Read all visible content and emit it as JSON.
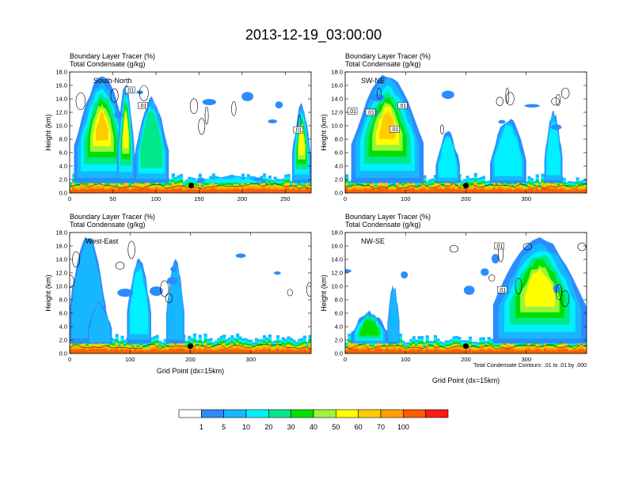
{
  "chart_data": {
    "type": "heatmap",
    "title": "2013-12-19_03:00:00",
    "colorbar": {
      "colors": [
        "#ffffff",
        "#2b8cff",
        "#17b7ff",
        "#00f0ff",
        "#00e88a",
        "#00e000",
        "#9cf53a",
        "#ffff00",
        "#ffcc00",
        "#ffa000",
        "#ff5a00",
        "#ff1a1a"
      ],
      "labels": [
        "1",
        "5",
        "10",
        "20",
        "30",
        "40",
        "50",
        "60",
        "70",
        "100"
      ]
    },
    "footnote": "Total Condensate Contours: .01 to .01 by .000",
    "panels": [
      {
        "id": "south-north",
        "label": "South-North",
        "line1": "Boundary Layer Tracer   (%)",
        "line2": "Total Condensate   (g/kg)",
        "ylabel": "Height (km)",
        "xlabel": "",
        "xlim": [
          0,
          280
        ],
        "ylim": [
          0,
          18
        ],
        "xticks": [
          0,
          50,
          100,
          150,
          200,
          250
        ],
        "yticks": [
          "0.0",
          "2.0",
          "4.0",
          "6.0",
          "8.0",
          "10.0",
          "12.0",
          "14.0",
          "16.0",
          "18.0"
        ],
        "marker": [
          141,
          1.1
        ],
        "contour_labels": [
          {
            "x": 70,
            "y": 15.3,
            "text": ".01"
          },
          {
            "x": 85,
            "y": 13.0,
            "text": ".01"
          },
          {
            "x": 265,
            "y": 9.4,
            "text": ".01"
          }
        ],
        "plumes": [
          {
            "x": 5,
            "w": 65,
            "top": 17,
            "peak": 80
          },
          {
            "x": 75,
            "w": 40,
            "top": 14,
            "peak": 30
          },
          {
            "x": 55,
            "w": 20,
            "top": 16,
            "peak": 60
          },
          {
            "x": 258,
            "w": 22,
            "top": 13,
            "peak": 55
          },
          {
            "x": 148,
            "w": 80,
            "top": 2.5,
            "peak": 20
          }
        ]
      },
      {
        "id": "sw-ne",
        "label": "SW-NE",
        "line1": "Boundary Layer Tracer   (%)",
        "line2": "Total Condensate   (g/kg)",
        "ylabel": "Height (km)",
        "xlabel": "",
        "xlim": [
          0,
          400
        ],
        "ylim": [
          0,
          18
        ],
        "xticks": [
          0,
          100,
          200,
          300
        ],
        "yticks": [
          "0.0",
          "2.0",
          "4.0",
          "6.0",
          "8.0",
          "10.0",
          "12.0",
          "14.0",
          "16.0",
          "18.0"
        ],
        "marker": [
          200,
          1.1
        ],
        "contour_labels": [
          {
            "x": 95,
            "y": 13.0,
            "text": ".01"
          },
          {
            "x": 12,
            "y": 12.2,
            "text": ".01"
          },
          {
            "x": 42,
            "y": 12.0,
            "text": ".01"
          },
          {
            "x": 82,
            "y": 9.5,
            "text": ".01"
          }
        ],
        "plumes": [
          {
            "x": 10,
            "w": 120,
            "top": 17.5,
            "peak": 90
          },
          {
            "x": 150,
            "w": 40,
            "top": 9,
            "peak": 20
          },
          {
            "x": 240,
            "w": 60,
            "top": 11,
            "peak": 15
          },
          {
            "x": 330,
            "w": 30,
            "top": 12,
            "peak": 20
          }
        ]
      },
      {
        "id": "west-east",
        "label": "West-East",
        "line1": "Boundary Layer Tracer   (%)",
        "line2": "Total Condensate   (g/kg)",
        "ylabel": "Height (km)",
        "xlabel": "Grid Point (dx=15km)",
        "xlim": [
          0,
          400
        ],
        "ylim": [
          0,
          18
        ],
        "xticks": [
          0,
          100,
          200,
          300
        ],
        "yticks": [
          "0.0",
          "2.0",
          "4.0",
          "6.0",
          "8.0",
          "10.0",
          "12.0",
          "14.0",
          "16.0",
          "18.0"
        ],
        "marker": [
          200,
          1.1
        ],
        "contour_labels": [],
        "plumes": [
          {
            "x": 0,
            "w": 60,
            "top": 17.5,
            "peak": 10
          },
          {
            "x": 95,
            "w": 40,
            "top": 14,
            "peak": 15
          },
          {
            "x": 160,
            "w": 30,
            "top": 14,
            "peak": 10
          },
          {
            "x": 30,
            "w": 40,
            "top": 7.5,
            "peak": 10
          }
        ]
      },
      {
        "id": "nw-se",
        "label": "NW-SE",
        "line1": "Boundary Layer Tracer   (%)",
        "line2": "Total Condensate   (g/kg)",
        "ylabel": "Height (km)",
        "xlabel": "Grid Point (dx=15km)",
        "xlim": [
          0,
          400
        ],
        "ylim": [
          0,
          18
        ],
        "xticks": [
          0,
          100,
          200,
          300
        ],
        "yticks": [
          "0.0",
          "2.0",
          "4.0",
          "6.0",
          "8.0",
          "10.0",
          "12.0",
          "14.0",
          "16.0",
          "18.0"
        ],
        "marker": [
          200,
          1.1
        ],
        "contour_labels": [
          {
            "x": 255,
            "y": 16.0,
            "text": ".01"
          },
          {
            "x": 260,
            "y": 9.5,
            "text": ".01"
          }
        ],
        "plumes": [
          {
            "x": 245,
            "w": 155,
            "top": 17,
            "peak": 60
          },
          {
            "x": 10,
            "w": 60,
            "top": 6,
            "peak": 40
          },
          {
            "x": 70,
            "w": 20,
            "top": 10,
            "peak": 10
          }
        ]
      }
    ]
  }
}
